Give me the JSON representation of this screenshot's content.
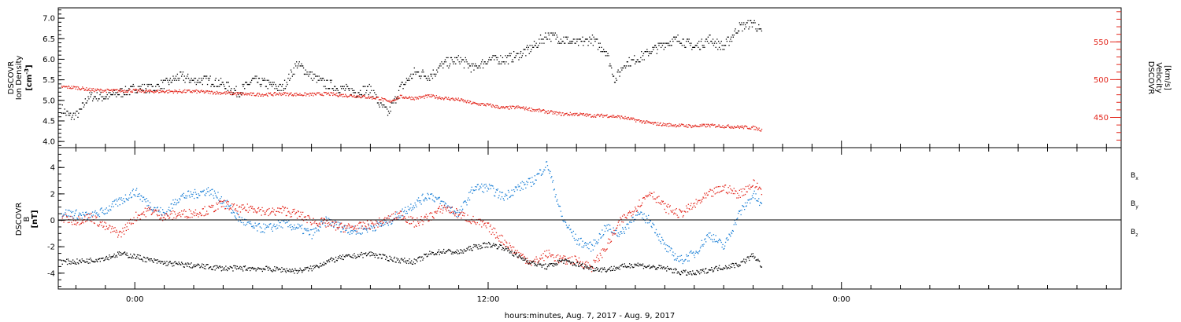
{
  "footer": {
    "xlabel": "hours:minutes, Aug.  7, 2017 - Aug.  9, 2017"
  },
  "x_axis": {
    "range_hours": [
      -2.6,
      33.5
    ],
    "ticks": [
      {
        "hour": 0,
        "label": "0:00"
      },
      {
        "hour": 12,
        "label": "12:00"
      },
      {
        "hour": 24,
        "label": "0:00"
      }
    ]
  },
  "colors": {
    "black": "#000000",
    "blue": "#1a7fd6",
    "red": "#e3261c"
  },
  "chart_data": [
    {
      "type": "scatter",
      "panel": "top",
      "ylabel_left": [
        "DSCOVR",
        "Ion Density"
      ],
      "units_left": {
        "base": "[cm",
        "sup": "-3",
        "end": "]"
      },
      "ylim_left": [
        3.85,
        7.25
      ],
      "yticks_left": [
        "4.0",
        "4.5",
        "5.0",
        "5.5",
        "6.0",
        "6.5",
        "7.0"
      ],
      "ylabel_right": [
        "DSCOVR",
        "Velocity",
        "[km/s]"
      ],
      "ylim_right": [
        410,
        595
      ],
      "yticks_right": [
        "450",
        "500",
        "550"
      ],
      "series": [
        {
          "color": "#000000",
          "axis": "left",
          "x": [
            -2.5,
            -2.2,
            -1.9,
            -1.6,
            -1.3,
            -1.0,
            -0.5,
            0.0,
            0.5,
            1.0,
            1.5,
            2.0,
            2.5,
            3.0,
            3.5,
            4.0,
            4.5,
            5.0,
            5.5,
            6.0,
            6.5,
            7.0,
            7.5,
            8.0,
            8.3,
            8.6,
            9.0,
            9.5,
            10.0,
            10.5,
            11.0,
            11.5,
            12.0,
            12.5,
            13.0,
            13.5,
            14.0,
            14.5,
            15.0,
            15.5,
            16.0,
            16.3,
            16.6,
            17.0,
            17.5,
            18.0,
            18.5,
            19.0,
            19.5,
            20.0,
            20.5,
            21.0,
            21.3
          ],
          "y": [
            4.8,
            4.6,
            4.7,
            5.1,
            5.1,
            5.1,
            5.2,
            5.3,
            5.3,
            5.4,
            5.6,
            5.5,
            5.5,
            5.4,
            5.2,
            5.5,
            5.4,
            5.3,
            5.9,
            5.6,
            5.4,
            5.3,
            5.2,
            5.3,
            4.9,
            4.7,
            5.3,
            5.7,
            5.6,
            5.9,
            6.0,
            5.8,
            6.0,
            6.0,
            6.1,
            6.3,
            6.6,
            6.5,
            6.4,
            6.5,
            6.2,
            5.5,
            5.9,
            6.0,
            6.2,
            6.4,
            6.5,
            6.3,
            6.5,
            6.3,
            6.8,
            6.9,
            6.6
          ]
        },
        {
          "color": "#e3261c",
          "axis": "right",
          "x": [
            -2.5,
            -2.0,
            -1.5,
            -1.0,
            -0.5,
            0.0,
            0.5,
            1.0,
            1.5,
            2.0,
            2.5,
            3.0,
            3.5,
            4.0,
            4.5,
            5.0,
            5.5,
            6.0,
            6.5,
            7.0,
            7.5,
            8.0,
            8.3,
            8.6,
            9.0,
            9.5,
            10.0,
            10.5,
            11.0,
            11.5,
            12.0,
            12.5,
            13.0,
            13.5,
            14.0,
            14.5,
            15.0,
            15.5,
            16.0,
            16.5,
            17.0,
            17.5,
            18.0,
            18.5,
            19.0,
            19.5,
            20.0,
            20.5,
            21.0,
            21.3
          ],
          "y": [
            491,
            490,
            487,
            486,
            486,
            486,
            485,
            485,
            485,
            485,
            484,
            483,
            482,
            481,
            481,
            482,
            481,
            481,
            482,
            480,
            479,
            477,
            476,
            471,
            478,
            476,
            479,
            476,
            474,
            469,
            467,
            463,
            464,
            461,
            458,
            455,
            455,
            453,
            453,
            451,
            447,
            443,
            441,
            440,
            439,
            440,
            439,
            438,
            437,
            434
          ]
        }
      ]
    },
    {
      "type": "scatter",
      "panel": "bottom",
      "ylabel": [
        "DSCOVR",
        "B"
      ],
      "units": "[nT]",
      "ylim": [
        -5.2,
        5.5
      ],
      "yticks": [
        "-4",
        "-2",
        "0",
        "2",
        "4"
      ],
      "zero_line": true,
      "series": [
        {
          "name": "B",
          "sub": "x",
          "color": "#000000",
          "x": [
            -2.5,
            -2.0,
            -1.5,
            -1.0,
            -0.5,
            0.0,
            0.5,
            1.0,
            1.5,
            2.0,
            3.0,
            4.0,
            5.0,
            5.5,
            6.0,
            6.5,
            7.0,
            8.0,
            8.5,
            9.0,
            9.5,
            10.0,
            10.5,
            11.0,
            11.5,
            12.0,
            12.5,
            13.0,
            13.5,
            14.0,
            14.5,
            15.0,
            15.5,
            16.0,
            16.5,
            17.0,
            17.5,
            18.0,
            18.5,
            19.0,
            19.5,
            20.0,
            20.5,
            21.0,
            21.3
          ],
          "y": [
            -3.1,
            -3.1,
            -3.0,
            -2.8,
            -2.5,
            -2.7,
            -3.0,
            -3.2,
            -3.3,
            -3.4,
            -3.6,
            -3.6,
            -3.7,
            -3.8,
            -3.6,
            -3.1,
            -2.8,
            -2.5,
            -2.8,
            -3.0,
            -3.1,
            -2.5,
            -2.3,
            -2.4,
            -2.0,
            -1.8,
            -2.0,
            -2.7,
            -3.2,
            -3.5,
            -3.0,
            -3.3,
            -3.6,
            -3.7,
            -3.5,
            -3.3,
            -3.5,
            -3.6,
            -3.9,
            -4.0,
            -3.7,
            -3.5,
            -3.3,
            -2.6,
            -3.5
          ]
        },
        {
          "name": "B",
          "sub": "y",
          "color": "#1a7fd6",
          "x": [
            -2.5,
            -2.0,
            -1.5,
            -1.0,
            -0.5,
            0.0,
            0.5,
            1.0,
            1.5,
            2.0,
            2.5,
            3.0,
            3.5,
            4.0,
            4.5,
            5.0,
            5.5,
            6.0,
            6.5,
            7.0,
            7.5,
            8.0,
            8.5,
            9.0,
            9.5,
            10.0,
            10.5,
            11.0,
            11.5,
            12.0,
            12.5,
            13.0,
            13.5,
            14.0,
            14.5,
            15.0,
            15.5,
            16.0,
            16.5,
            17.0,
            17.5,
            18.0,
            18.5,
            19.0,
            19.5,
            20.0,
            20.5,
            21.0,
            21.3
          ],
          "y": [
            0.6,
            0.5,
            0.3,
            0.8,
            1.5,
            2.2,
            1.2,
            0.5,
            1.8,
            2.0,
            2.3,
            1.5,
            0.2,
            -0.5,
            -0.6,
            -0.2,
            -0.5,
            -1.0,
            0.0,
            -0.5,
            -0.8,
            -0.5,
            -0.2,
            0.5,
            1.3,
            2.0,
            1.2,
            0.5,
            2.5,
            2.5,
            1.8,
            2.5,
            3.0,
            4.3,
            0.2,
            -1.5,
            -2.0,
            -0.5,
            -1.0,
            0.5,
            0.0,
            -2.0,
            -3.0,
            -2.5,
            -1.0,
            -2.0,
            0.5,
            2.0,
            1.0
          ]
        },
        {
          "name": "B",
          "sub": "z",
          "color": "#e3261c",
          "x": [
            -2.5,
            -2.0,
            -1.5,
            -1.0,
            -0.5,
            0.0,
            0.5,
            1.0,
            1.5,
            2.0,
            2.5,
            3.0,
            3.5,
            4.0,
            4.5,
            5.0,
            5.5,
            6.0,
            6.5,
            7.0,
            7.5,
            8.0,
            8.5,
            9.0,
            9.5,
            10.0,
            10.5,
            11.0,
            11.5,
            12.0,
            12.5,
            13.0,
            13.5,
            14.0,
            14.5,
            15.0,
            15.5,
            16.0,
            16.5,
            17.0,
            17.5,
            18.0,
            18.5,
            19.0,
            19.5,
            20.0,
            20.5,
            21.0,
            21.3
          ],
          "y": [
            0.2,
            0.0,
            0.3,
            -0.5,
            -1.0,
            0.3,
            0.8,
            0.3,
            0.5,
            0.6,
            0.8,
            1.3,
            0.8,
            1.0,
            0.6,
            0.8,
            0.5,
            0.0,
            -0.2,
            -0.5,
            -0.5,
            -0.3,
            0.0,
            0.5,
            -0.2,
            0.3,
            1.0,
            0.5,
            0.0,
            -0.5,
            -1.5,
            -2.5,
            -3.2,
            -2.5,
            -3.0,
            -3.0,
            -3.5,
            -2.0,
            0.0,
            1.0,
            2.2,
            1.0,
            0.5,
            1.2,
            2.0,
            2.5,
            2.0,
            2.8,
            2.3
          ]
        }
      ]
    }
  ]
}
